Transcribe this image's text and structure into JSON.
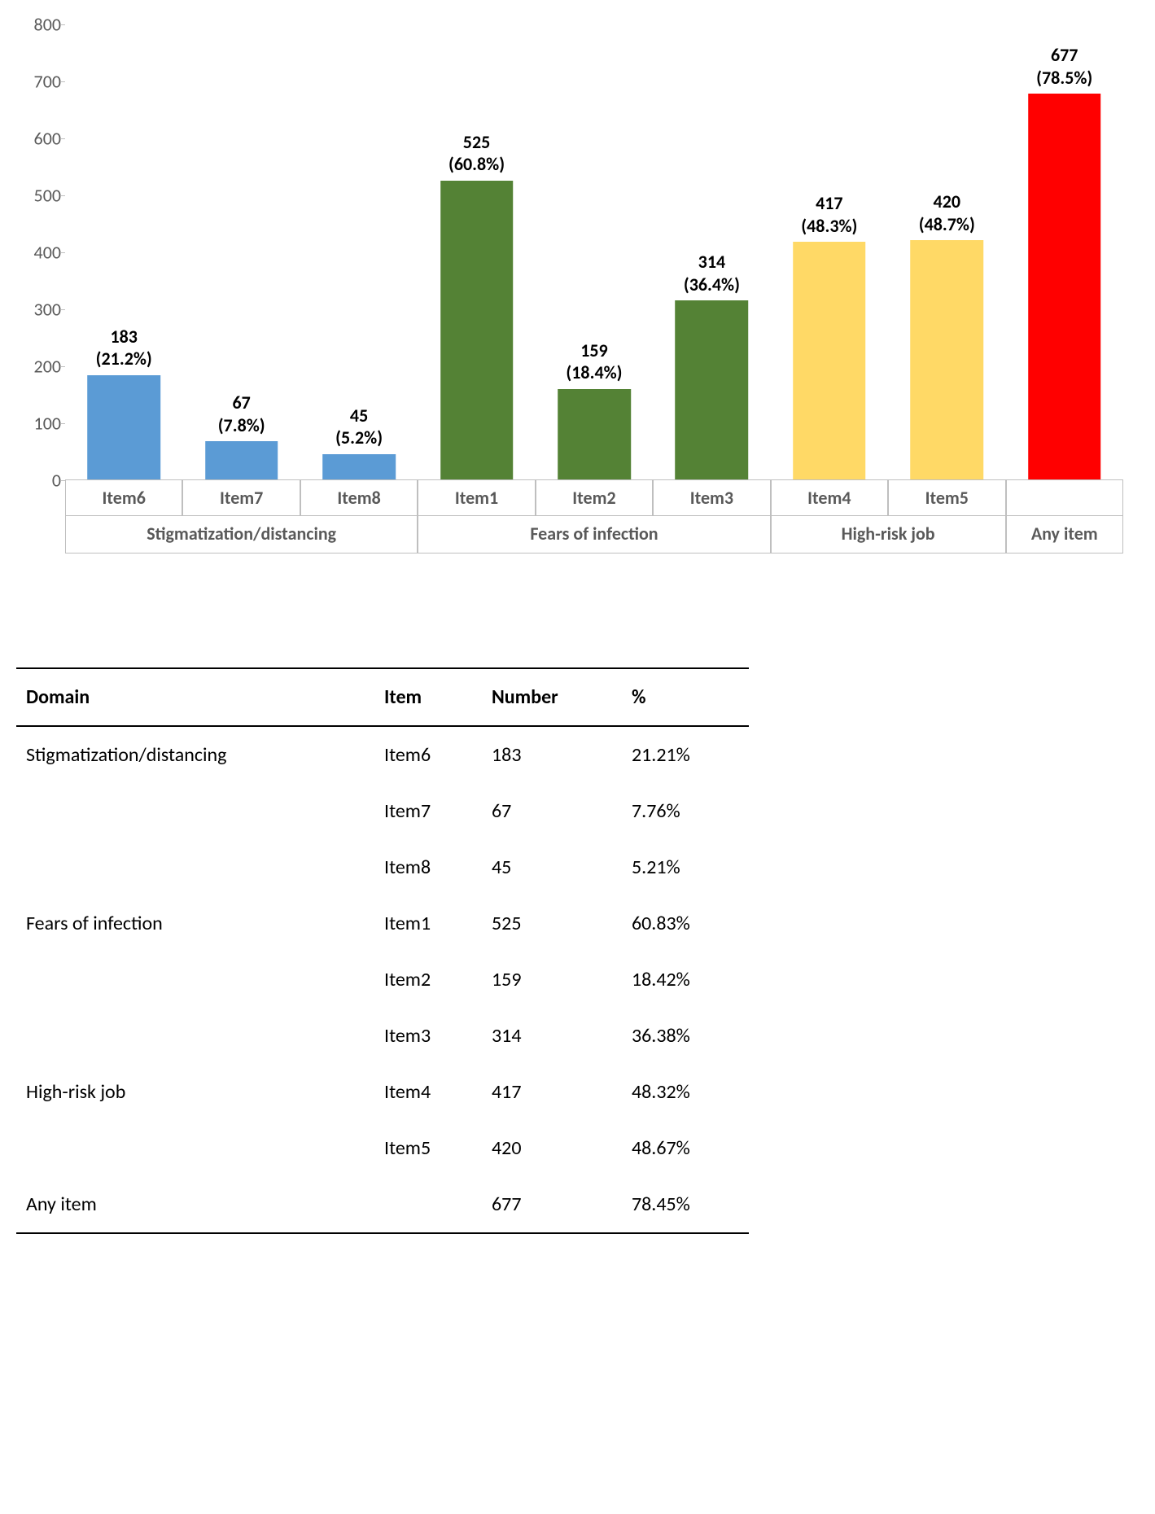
{
  "chart": {
    "type": "bar",
    "ylim": [
      0,
      800
    ],
    "ytick_step": 100,
    "yticks": [
      0,
      100,
      200,
      300,
      400,
      500,
      600,
      700,
      800
    ],
    "tick_color": "#595959",
    "tick_fontsize": 22,
    "axis_line_color": "#bfbfbf",
    "background_color": "#ffffff",
    "bar_width_ratio": 0.62,
    "label_fontsize": 22,
    "label_fontweight": "bold",
    "label_color": "#000000",
    "colors": {
      "blue": "#5b9bd5",
      "green": "#548235",
      "yellow": "#ffd966",
      "red": "#ff0000"
    },
    "groups": [
      {
        "label": "Stigmatization/distancing",
        "span": 3
      },
      {
        "label": "Fears of infection",
        "span": 3
      },
      {
        "label": "High-risk job",
        "span": 2
      },
      {
        "label": "Any item",
        "span": 1
      }
    ],
    "bars": [
      {
        "item": "Item6",
        "value": 183,
        "pct": "(21.2%)",
        "color": "#5b9bd5"
      },
      {
        "item": "Item7",
        "value": 67,
        "pct": "(7.8%)",
        "color": "#5b9bd5"
      },
      {
        "item": "Item8",
        "value": 45,
        "pct": "(5.2%)",
        "color": "#5b9bd5"
      },
      {
        "item": "Item1",
        "value": 525,
        "pct": "(60.8%)",
        "color": "#548235"
      },
      {
        "item": "Item2",
        "value": 159,
        "pct": "(18.4%)",
        "color": "#548235"
      },
      {
        "item": "Item3",
        "value": 314,
        "pct": "(36.4%)",
        "color": "#548235"
      },
      {
        "item": "Item4",
        "value": 417,
        "pct": "(48.3%)",
        "color": "#ffd966"
      },
      {
        "item": "Item5",
        "value": 420,
        "pct": "(48.7%)",
        "color": "#ffd966"
      },
      {
        "item": "",
        "value": 677,
        "pct": "(78.5%)",
        "color": "#ff0000"
      }
    ]
  },
  "table": {
    "columns": [
      "Domain",
      "Item",
      "Number",
      "%"
    ],
    "col_align": [
      "left",
      "left",
      "right",
      "right"
    ],
    "header_fontsize": 24,
    "cell_fontsize": 24,
    "border_color": "#000000",
    "border_width": 2,
    "rows": [
      {
        "domain": "Stigmatization/distancing",
        "item": "Item6",
        "number": "183",
        "pct": "21.21%"
      },
      {
        "domain": "",
        "item": "Item7",
        "number": "67",
        "pct": "7.76%"
      },
      {
        "domain": "",
        "item": "Item8",
        "number": "45",
        "pct": "5.21%"
      },
      {
        "domain": "Fears of infection",
        "item": "Item1",
        "number": "525",
        "pct": "60.83%"
      },
      {
        "domain": "",
        "item": "Item2",
        "number": "159",
        "pct": "18.42%"
      },
      {
        "domain": "",
        "item": "Item3",
        "number": "314",
        "pct": "36.38%"
      },
      {
        "domain": "High-risk job",
        "item": "Item4",
        "number": "417",
        "pct": "48.32%"
      },
      {
        "domain": "",
        "item": "Item5",
        "number": "420",
        "pct": "48.67%"
      },
      {
        "domain": "Any item",
        "item": "",
        "number": "677",
        "pct": "78.45%"
      }
    ]
  }
}
